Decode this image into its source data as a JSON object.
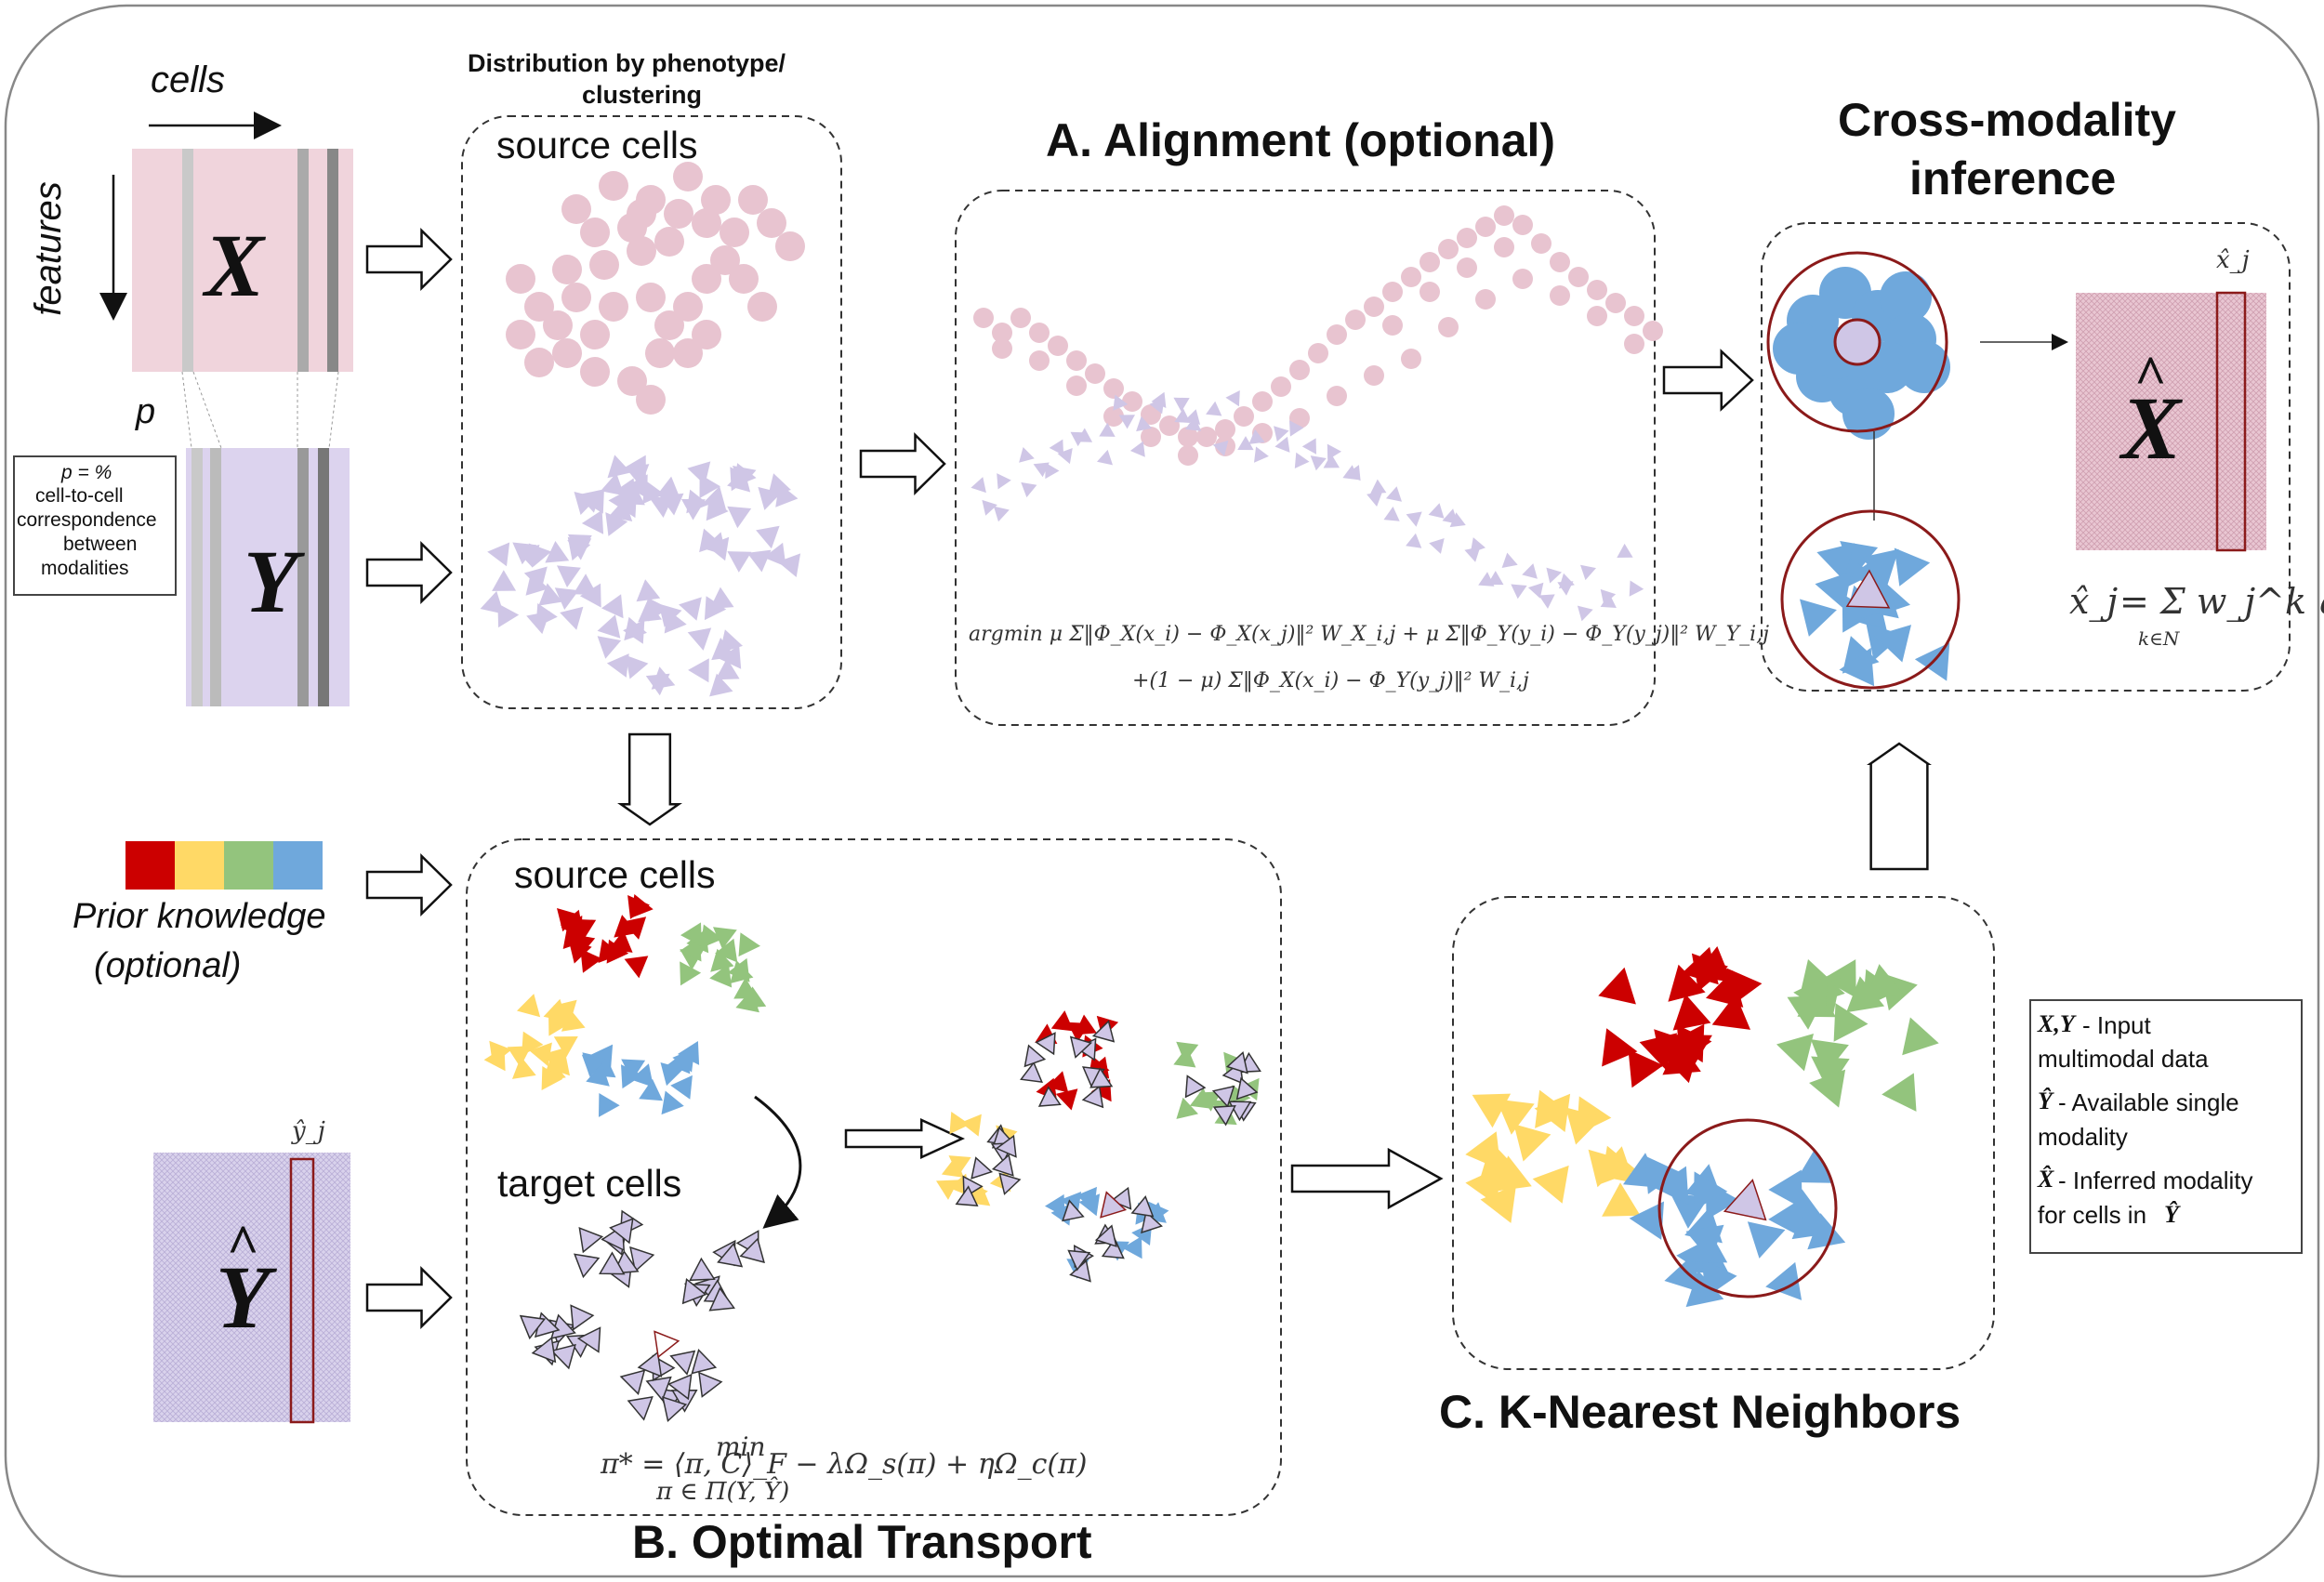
{
  "matrix_axes": {
    "cells": "cells",
    "features": "features",
    "p": "p"
  },
  "matrix_letters": {
    "X": "X",
    "Y": "Y",
    "Xhat": "X",
    "Yhat": "Y"
  },
  "p_note": {
    "line1": "p = %",
    "line2": "cell-to-cell",
    "line3": "correspondence",
    "line4": "between",
    "line5": "modalities"
  },
  "distribution_label": {
    "line1": "Distribution by phenotype/",
    "line2": "clustering"
  },
  "source_cells_label": "source cells",
  "target_cells_label": "target cells",
  "prior": {
    "line1": "Prior knowledge",
    "line2": "(optional)",
    "colors": [
      "#cc0000",
      "#ffd966",
      "#93c47d",
      "#6fa8dc"
    ]
  },
  "panel_titles": {
    "alignment": "A. Alignment (optional)",
    "optimal_transport": "B. Optimal Transport",
    "knn": "C. K-Nearest Neighbors",
    "cross_line1": "Cross-modality",
    "cross_line2": "inference"
  },
  "formulas": {
    "alignment_line1": "argmin μ Σ‖Φ_X(x_i) − Φ_X(x_j)‖² W_X_i,j + μ Σ‖Φ_Y(y_i) − Φ_Y(y_j)‖² W_Y_i,j",
    "alignment_line2": "+(1 − μ) Σ‖Φ_X(x_i) − Φ_Y(y_j)‖² W_i,j",
    "ot_min": "min",
    "ot_main": "π* =          ⟨π, C⟩_F − λΩ_s(π) + ηΩ_c(π)",
    "ot_sub": "π ∈ Π(Y, Ŷ)",
    "knn_lhs": "x̂_j",
    "knn_rhs": "= Σ w_j^k q_j^k",
    "knn_sum_sub": "k∈N",
    "yhat_col": "ŷ_j",
    "xhat_col": "x̂_j"
  },
  "legend": {
    "xy_sym": "X,Y",
    "xy_text1": " - Input",
    "xy_text2": "multimodal data",
    "yhat_sym": "Ŷ",
    "yhat_text1": " - Available single",
    "yhat_text2": "modality",
    "xhat_sym": "X̂",
    "xhat_text1": " - Inferred modality",
    "xhat_text2": "for cells in ",
    "xhat_text2_sym": "Ŷ"
  },
  "colors": {
    "pink": "#e8c4d0",
    "lavender": "#cfc6e6",
    "red": "#cc0000",
    "yellow": "#ffd966",
    "green": "#93c47d",
    "blue": "#6fa8dc",
    "dark_red": "#8b1a1a",
    "x_matrix": "#f0d4dc",
    "y_matrix": "#dcd3ee"
  }
}
